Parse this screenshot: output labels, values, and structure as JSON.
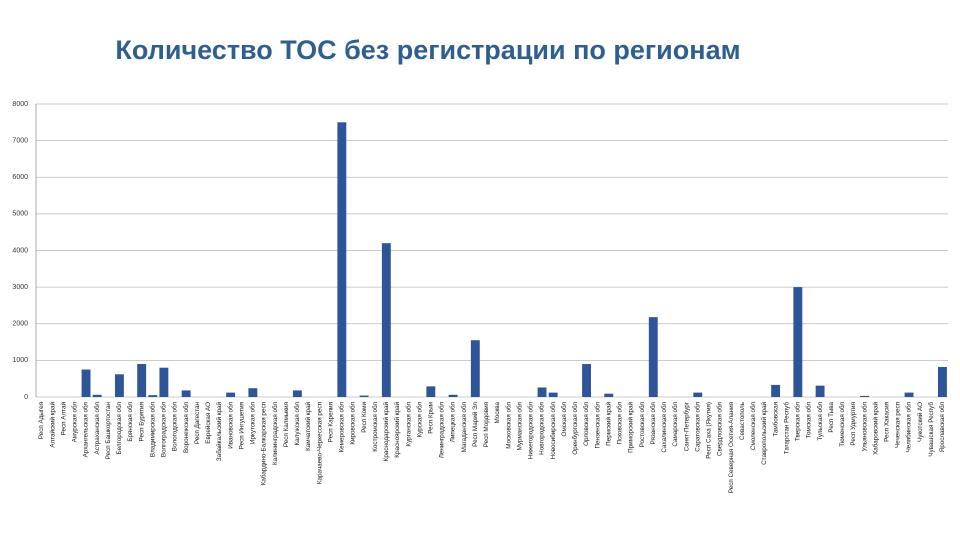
{
  "chart_data": {
    "type": "bar",
    "title": "Количество ТОС без регистрации по регионам",
    "categories": [
      "Респ Адыгея",
      "Алтайский край",
      "Респ Алтай",
      "Амурская обл",
      "Архангельская обл",
      "Астраханская обл",
      "Респ Башкортостан",
      "Белгородская обл",
      "Брянская обл",
      "Респ Бурятия",
      "Владимирская обл",
      "Волгоградская обл",
      "Вологодская обл",
      "Воронежская обл",
      "Респ Дагестан",
      "Еврейская АО",
      "Забайкальский край",
      "Ивановская обл",
      "Респ Ингушетия",
      "Иркутская обл",
      "Кабардино-Балкарская респ",
      "Калининградская обл",
      "Респ Калмыкия",
      "Калужская обл",
      "Камчатский край",
      "Карачаево-Черкесская респ",
      "Респ Карелия",
      "Кемеровская обл",
      "Кировская обл",
      "Респ Коми",
      "Костромская обл",
      "Краснодарский край",
      "Красноярский край",
      "Курганская обл",
      "Курская обл",
      "Респ Крым",
      "Ленинградская обл",
      "Липецкая обл",
      "Магаданская обл",
      "Респ Марий Эл",
      "Респ Мордовия",
      "Москва",
      "Московская обл",
      "Мурманская обл",
      "Нижегородская обл",
      "Новгородская обл",
      "Новосибирская обл",
      "Омская обл",
      "Оренбургская обл",
      "Орловская обл",
      "Пензенская обл",
      "Пермский край",
      "Псковская обл",
      "Приморский край",
      "Ростовская обл",
      "Рязанская обл",
      "Сахалинская обл",
      "Самарская обл",
      "Санкт-Петербург",
      "Саратовская обл",
      "Респ Саха (Якутия)",
      "Свердловская обл",
      "Респ Северная Осетия-Алания",
      "Севастополь",
      "Смоленская обл",
      "Ставропольский край",
      "Тамбовская",
      "Татарстан Респуб",
      "Тверская обл",
      "Томская обл",
      "Тульская обл",
      "Респ Тыва",
      "Тюменская обл",
      "Респ Удмуртия",
      "Ульяновская обл",
      "Хабаровский край",
      "Респ Хакасия",
      "Чеченская респ",
      "Челябинская обл",
      "Чукотский АО",
      "Чувашская Респуб",
      "Ярославская обл"
    ],
    "values": [
      0,
      0,
      0,
      0,
      750,
      60,
      0,
      620,
      0,
      900,
      50,
      800,
      0,
      180,
      0,
      0,
      0,
      120,
      0,
      240,
      0,
      0,
      0,
      180,
      0,
      0,
      0,
      7500,
      0,
      40,
      0,
      4200,
      0,
      0,
      0,
      290,
      0,
      60,
      0,
      1550,
      0,
      0,
      0,
      0,
      0,
      260,
      120,
      0,
      0,
      900,
      0,
      90,
      0,
      0,
      0,
      2180,
      0,
      0,
      0,
      120,
      0,
      0,
      0,
      0,
      0,
      0,
      330,
      0,
      3000,
      0,
      310,
      0,
      0,
      0,
      30,
      0,
      0,
      0,
      120,
      0,
      0,
      820
    ],
    "color": "#2e5597",
    "ylim": [
      0,
      8000
    ],
    "yticks": [
      0,
      1000,
      2000,
      3000,
      4000,
      5000,
      6000,
      7000,
      8000
    ],
    "grid": true
  }
}
